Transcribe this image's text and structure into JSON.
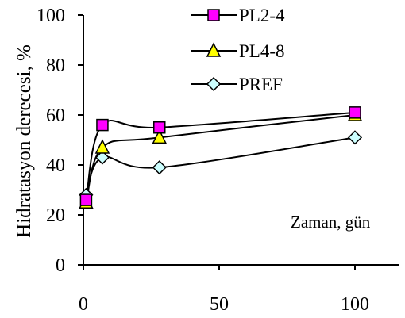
{
  "chart_data": {
    "type": "line",
    "title": "",
    "xlabel": "",
    "ylabel": "Hidratasyon derecesi, %",
    "xlim": [
      0,
      100
    ],
    "ylim": [
      0,
      100
    ],
    "xticks": [
      0,
      50,
      100
    ],
    "yticks": [
      0,
      20,
      40,
      60,
      80,
      100
    ],
    "grid": false,
    "smooth": true,
    "legend_position": "top-center",
    "annotation": "Zaman, gün",
    "series": [
      {
        "name": "PL2-4",
        "marker": "square",
        "color": "#ff00ff",
        "x": [
          1,
          7,
          28,
          100
        ],
        "y": [
          26,
          56,
          55,
          61
        ]
      },
      {
        "name": "PL4-8",
        "marker": "triangle",
        "color": "#ffff00",
        "x": [
          1,
          7,
          28,
          100
        ],
        "y": [
          25,
          47,
          51,
          60
        ]
      },
      {
        "name": "PREF",
        "marker": "diamond",
        "color": "#ccffff",
        "x": [
          1,
          7,
          28,
          100
        ],
        "y": [
          28,
          43,
          39,
          51
        ]
      }
    ]
  }
}
